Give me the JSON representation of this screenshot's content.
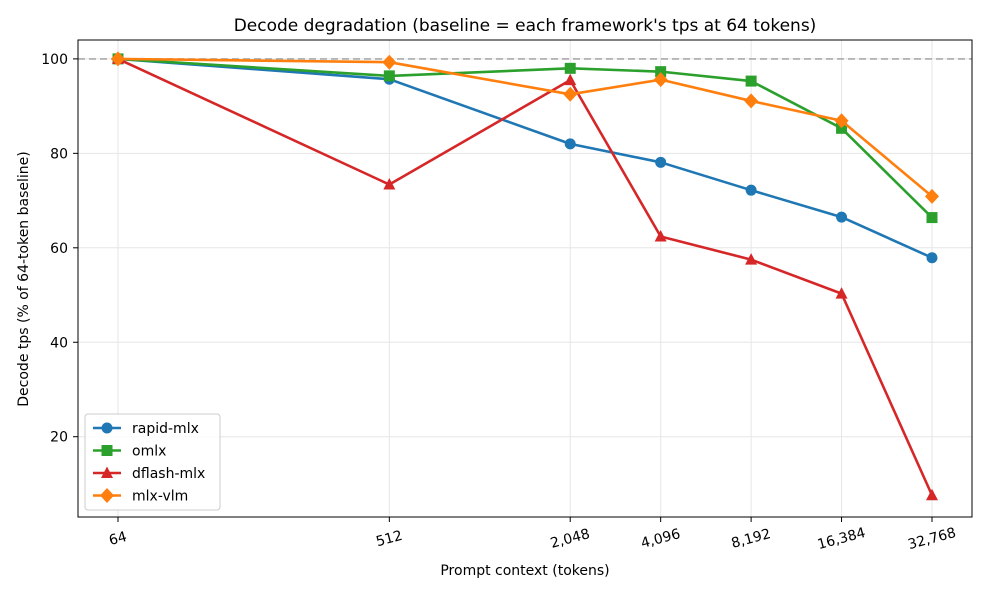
{
  "chart_data": {
    "type": "line",
    "title": "Decode degradation (baseline = each framework's tps at 64 tokens)",
    "xlabel": "Prompt context (tokens)",
    "ylabel": "Decode tps (% of 64-token baseline)",
    "x_scale": "log2",
    "x": [
      64,
      512,
      2048,
      4096,
      8192,
      16384,
      32768
    ],
    "x_tick_labels": [
      "64",
      "512",
      "2,048",
      "4,096",
      "8,192",
      "16,384",
      "32,768"
    ],
    "ylim": [
      3,
      104
    ],
    "y_ticks": [
      20,
      40,
      60,
      80,
      100
    ],
    "grid": true,
    "baseline_line": 100,
    "legend_position": "lower-left",
    "series": [
      {
        "name": "rapid-mlx",
        "color": "#1f77b4",
        "marker": "circle",
        "values": [
          100,
          95.7,
          82.0,
          78.1,
          72.2,
          66.5,
          57.9
        ]
      },
      {
        "name": "omlx",
        "color": "#2ca02c",
        "marker": "square",
        "values": [
          100,
          96.4,
          98.0,
          97.3,
          95.3,
          85.3,
          66.4
        ]
      },
      {
        "name": "dflash-mlx",
        "color": "#d62728",
        "marker": "triangle",
        "values": [
          100,
          73.4,
          95.5,
          62.4,
          57.5,
          50.3,
          7.6
        ]
      },
      {
        "name": "mlx-vlm",
        "color": "#ff7f0e",
        "marker": "diamond",
        "values": [
          100,
          99.3,
          92.5,
          95.6,
          91.1,
          86.9,
          70.9
        ]
      }
    ]
  }
}
